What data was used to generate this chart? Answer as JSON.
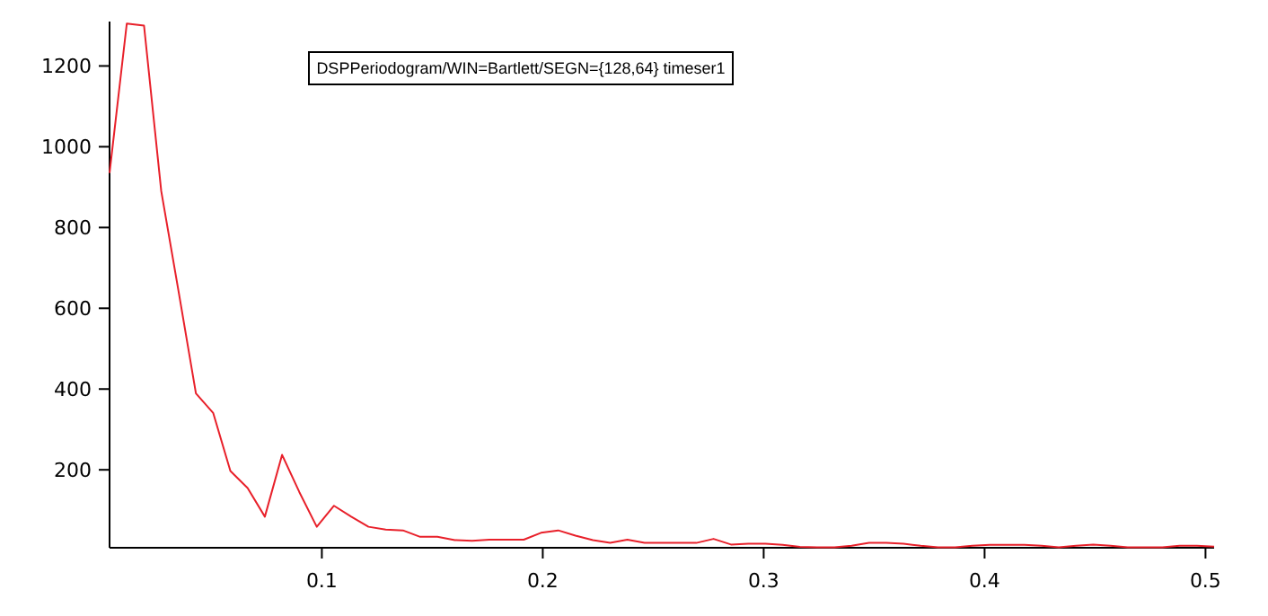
{
  "chart_data": {
    "type": "line",
    "annotations": [
      "DSPPeriodogram/WIN=Bartlett/SEGN={128,64} timeser1"
    ],
    "x": [
      0.0039,
      0.0117,
      0.0195,
      0.0273,
      0.0352,
      0.043,
      0.0508,
      0.0586,
      0.0664,
      0.0742,
      0.082,
      0.0898,
      0.0977,
      0.1055,
      0.1133,
      0.1211,
      0.1289,
      0.1367,
      0.1445,
      0.1523,
      0.1602,
      0.168,
      0.1758,
      0.1836,
      0.1914,
      0.1992,
      0.207,
      0.2148,
      0.2227,
      0.2305,
      0.2383,
      0.2461,
      0.2539,
      0.2617,
      0.2695,
      0.2773,
      0.2852,
      0.293,
      0.3008,
      0.3086,
      0.3164,
      0.3242,
      0.332,
      0.3398,
      0.3477,
      0.3555,
      0.3633,
      0.3711,
      0.3789,
      0.3867,
      0.3945,
      0.4023,
      0.4102,
      0.418,
      0.4258,
      0.4336,
      0.4414,
      0.4492,
      0.457,
      0.4648,
      0.4727,
      0.4805,
      0.4883,
      0.4961,
      0.5039
    ],
    "series": [
      {
        "color": "#e8202a",
        "values": [
          935,
          1305,
          1300,
          890,
          640,
          389,
          341,
          197,
          155,
          84,
          237,
          145,
          59,
          111,
          84,
          59,
          52,
          50,
          34,
          34,
          26,
          24,
          27,
          27,
          27,
          44,
          50,
          37,
          26,
          19,
          27,
          19,
          19,
          19,
          19,
          29,
          15,
          17,
          17,
          14,
          9,
          8,
          8,
          12,
          19,
          19,
          17,
          12,
          8,
          8,
          12,
          14,
          14,
          14,
          12,
          8,
          12,
          15,
          12,
          8,
          8,
          8,
          12,
          12,
          10
        ]
      }
    ],
    "xlim": [
      0.0039,
      0.5039
    ],
    "ylim": [
      7,
      1310
    ],
    "xticks": [
      0.1,
      0.2,
      0.3,
      0.4,
      0.5
    ],
    "yticks": [
      200,
      400,
      600,
      800,
      1000,
      1200
    ],
    "grid": false,
    "line_style": "solid"
  }
}
